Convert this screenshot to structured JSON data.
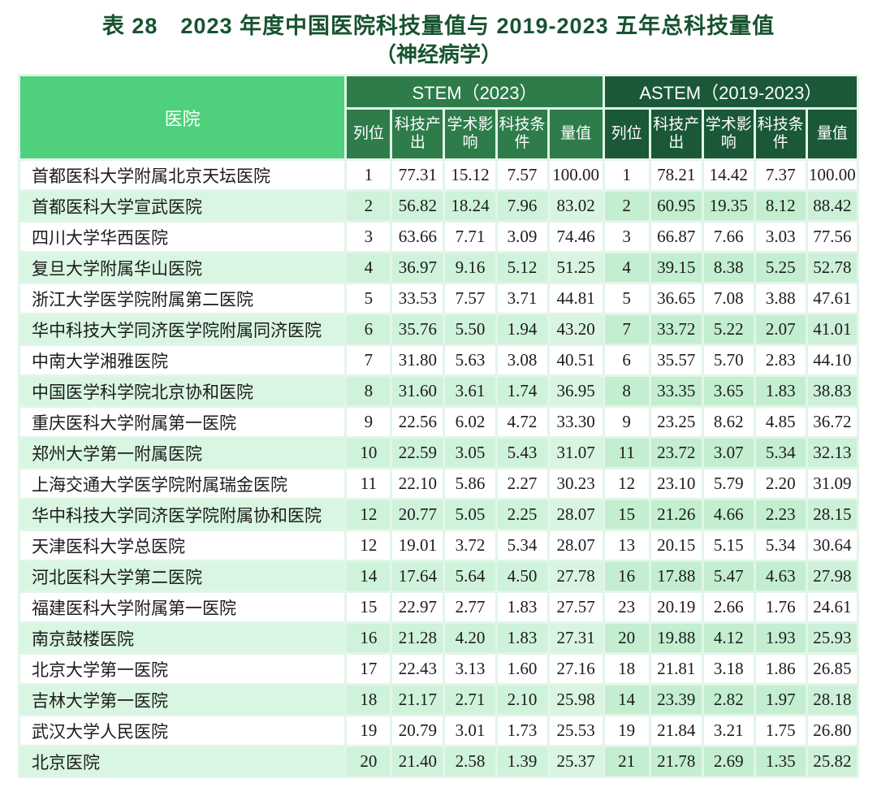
{
  "title": {
    "line1": "表 28　2023 年度中国医院科技量值与 2019-2023 五年总科技量值",
    "line2": "（神经病学）"
  },
  "colors": {
    "title_green": "#17532f",
    "hospital_header_green": "#4ed07c",
    "stem_header_green": "#2e7c4a",
    "astem_header_green": "#1a5837",
    "even_row_green": "#cff2da"
  },
  "table": {
    "hospital_header": "医院",
    "groups": [
      {
        "label": "STEM（2023）",
        "columns": [
          "列位",
          "科技产出",
          "学术影响",
          "科技条件",
          "量值"
        ]
      },
      {
        "label": "ASTEM（2019-2023）",
        "columns": [
          "列位",
          "科技产出",
          "学术影响",
          "科技条件",
          "量值"
        ]
      }
    ],
    "rows": [
      {
        "hospital": "首都医科大学附属北京天坛医院",
        "stem": [
          "1",
          "77.31",
          "15.12",
          "7.57",
          "100.00"
        ],
        "astem": [
          "1",
          "78.21",
          "14.42",
          "7.37",
          "100.00"
        ]
      },
      {
        "hospital": "首都医科大学宣武医院",
        "stem": [
          "2",
          "56.82",
          "18.24",
          "7.96",
          "83.02"
        ],
        "astem": [
          "2",
          "60.95",
          "19.35",
          "8.12",
          "88.42"
        ]
      },
      {
        "hospital": "四川大学华西医院",
        "stem": [
          "3",
          "63.66",
          "7.71",
          "3.09",
          "74.46"
        ],
        "astem": [
          "3",
          "66.87",
          "7.66",
          "3.03",
          "77.56"
        ]
      },
      {
        "hospital": "复旦大学附属华山医院",
        "stem": [
          "4",
          "36.97",
          "9.16",
          "5.12",
          "51.25"
        ],
        "astem": [
          "4",
          "39.15",
          "8.38",
          "5.25",
          "52.78"
        ]
      },
      {
        "hospital": "浙江大学医学院附属第二医院",
        "stem": [
          "5",
          "33.53",
          "7.57",
          "3.71",
          "44.81"
        ],
        "astem": [
          "5",
          "36.65",
          "7.08",
          "3.88",
          "47.61"
        ]
      },
      {
        "hospital": "华中科技大学同济医学院附属同济医院",
        "stem": [
          "6",
          "35.76",
          "5.50",
          "1.94",
          "43.20"
        ],
        "astem": [
          "7",
          "33.72",
          "5.22",
          "2.07",
          "41.01"
        ]
      },
      {
        "hospital": "中南大学湘雅医院",
        "stem": [
          "7",
          "31.80",
          "5.63",
          "3.08",
          "40.51"
        ],
        "astem": [
          "6",
          "35.57",
          "5.70",
          "2.83",
          "44.10"
        ]
      },
      {
        "hospital": "中国医学科学院北京协和医院",
        "stem": [
          "8",
          "31.60",
          "3.61",
          "1.74",
          "36.95"
        ],
        "astem": [
          "8",
          "33.35",
          "3.65",
          "1.83",
          "38.83"
        ]
      },
      {
        "hospital": "重庆医科大学附属第一医院",
        "stem": [
          "9",
          "22.56",
          "6.02",
          "4.72",
          "33.30"
        ],
        "astem": [
          "9",
          "23.25",
          "8.62",
          "4.85",
          "36.72"
        ]
      },
      {
        "hospital": "郑州大学第一附属医院",
        "stem": [
          "10",
          "22.59",
          "3.05",
          "5.43",
          "31.07"
        ],
        "astem": [
          "11",
          "23.72",
          "3.07",
          "5.34",
          "32.13"
        ]
      },
      {
        "hospital": "上海交通大学医学院附属瑞金医院",
        "stem": [
          "11",
          "22.10",
          "5.86",
          "2.27",
          "30.23"
        ],
        "astem": [
          "12",
          "23.10",
          "5.79",
          "2.20",
          "31.09"
        ]
      },
      {
        "hospital": "华中科技大学同济医学院附属协和医院",
        "stem": [
          "12",
          "20.77",
          "5.05",
          "2.25",
          "28.07"
        ],
        "astem": [
          "15",
          "21.26",
          "4.66",
          "2.23",
          "28.15"
        ]
      },
      {
        "hospital": "天津医科大学总医院",
        "stem": [
          "12",
          "19.01",
          "3.72",
          "5.34",
          "28.07"
        ],
        "astem": [
          "13",
          "20.15",
          "5.15",
          "5.34",
          "30.64"
        ]
      },
      {
        "hospital": "河北医科大学第二医院",
        "stem": [
          "14",
          "17.64",
          "5.64",
          "4.50",
          "27.78"
        ],
        "astem": [
          "16",
          "17.88",
          "5.47",
          "4.63",
          "27.98"
        ]
      },
      {
        "hospital": "福建医科大学附属第一医院",
        "stem": [
          "15",
          "22.97",
          "2.77",
          "1.83",
          "27.57"
        ],
        "astem": [
          "23",
          "20.19",
          "2.66",
          "1.76",
          "24.61"
        ]
      },
      {
        "hospital": "南京鼓楼医院",
        "stem": [
          "16",
          "21.28",
          "4.20",
          "1.83",
          "27.31"
        ],
        "astem": [
          "20",
          "19.88",
          "4.12",
          "1.93",
          "25.93"
        ]
      },
      {
        "hospital": "北京大学第一医院",
        "stem": [
          "17",
          "22.43",
          "3.13",
          "1.60",
          "27.16"
        ],
        "astem": [
          "18",
          "21.81",
          "3.18",
          "1.86",
          "26.85"
        ]
      },
      {
        "hospital": "吉林大学第一医院",
        "stem": [
          "18",
          "21.17",
          "2.71",
          "2.10",
          "25.98"
        ],
        "astem": [
          "14",
          "23.39",
          "2.82",
          "1.97",
          "28.18"
        ]
      },
      {
        "hospital": "武汉大学人民医院",
        "stem": [
          "19",
          "20.79",
          "3.01",
          "1.73",
          "25.53"
        ],
        "astem": [
          "19",
          "21.84",
          "3.21",
          "1.75",
          "26.80"
        ]
      },
      {
        "hospital": "北京医院",
        "stem": [
          "20",
          "21.40",
          "2.58",
          "1.39",
          "25.37"
        ],
        "astem": [
          "21",
          "21.78",
          "2.69",
          "1.35",
          "25.82"
        ]
      }
    ]
  }
}
